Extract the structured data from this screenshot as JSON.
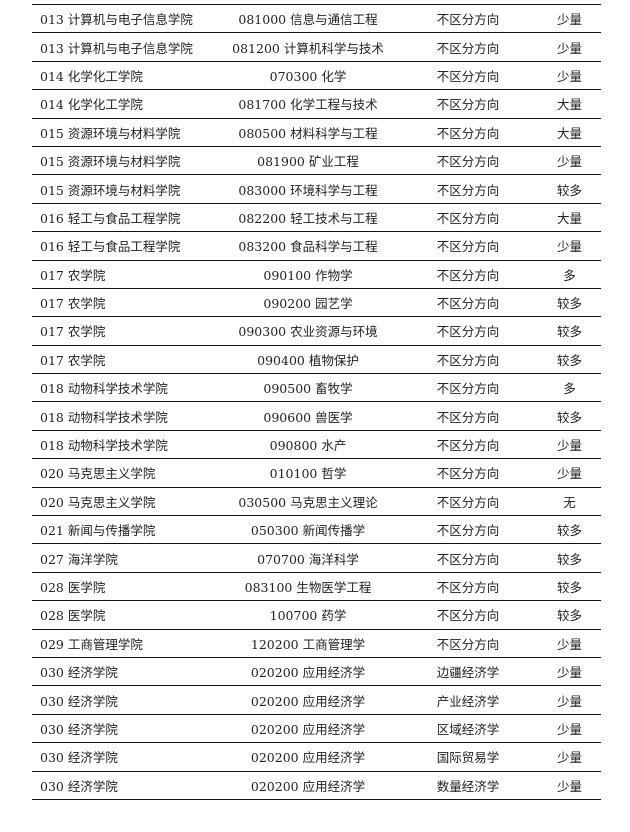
{
  "rows": [
    [
      "013 计算机与电子信息学院",
      "081000 信息与通信工程",
      "不区分方向",
      "少量"
    ],
    [
      "013 计算机与电子信息学院",
      "081200 计算机科学与技术",
      "不区分方向",
      "少量"
    ],
    [
      "014 化学化工学院",
      "070300 化学",
      "不区分方向",
      "少量"
    ],
    [
      "014 化学化工学院",
      "081700 化学工程与技术",
      "不区分方向",
      "大量"
    ],
    [
      "015 资源环境与材料学院",
      "080500 材料科学与工程",
      "不区分方向",
      "大量"
    ],
    [
      "015 资源环境与材料学院",
      "081900 矿业工程",
      "不区分方向",
      "少量"
    ],
    [
      "015 资源环境与材料学院",
      "083000 环境科学与工程",
      "不区分方向",
      "较多"
    ],
    [
      "016 轻工与食品工程学院",
      "082200 轻工技术与工程",
      "不区分方向",
      "大量"
    ],
    [
      "016 轻工与食品工程学院",
      "083200 食品科学与工程",
      "不区分方向",
      "少量"
    ],
    [
      "017 农学院",
      "090100 作物学",
      "不区分方向",
      "多"
    ],
    [
      "017 农学院",
      "090200 园艺学",
      "不区分方向",
      "较多"
    ],
    [
      "017 农学院",
      "090300 农业资源与环境",
      "不区分方向",
      "较多"
    ],
    [
      "017 农学院",
      "090400 植物保护",
      "不区分方向",
      "较多"
    ],
    [
      "018 动物科学技术学院",
      "090500 畜牧学",
      "不区分方向",
      "多"
    ],
    [
      "018 动物科学技术学院",
      "090600 兽医学",
      "不区分方向",
      "较多"
    ],
    [
      "018 动物科学技术学院",
      "090800 水产",
      "不区分方向",
      "少量"
    ],
    [
      "020 马克思主义学院",
      "010100 哲学",
      "不区分方向",
      "少量"
    ],
    [
      "020 马克思主义学院",
      "030500 马克思主义理论",
      "不区分方向",
      "无"
    ],
    [
      "021 新闻与传播学院",
      "050300 新闻传播学",
      "不区分方向",
      "较多"
    ],
    [
      "027 海洋学院",
      "070700 海洋科学",
      "不区分方向",
      "较多"
    ],
    [
      "028 医学院",
      "083100 生物医学工程",
      "不区分方向",
      "较多"
    ],
    [
      "028 医学院",
      "100700 药学",
      "不区分方向",
      "较多"
    ],
    [
      "029 工商管理学院",
      "120200 工商管理学",
      "不区分方向",
      "少量"
    ],
    [
      "030 经济学院",
      "020200 应用经济学",
      "边疆经济学",
      "少量"
    ],
    [
      "030 经济学院",
      "020200 应用经济学",
      "产业经济学",
      "少量"
    ],
    [
      "030 经济学院",
      "020200 应用经济学",
      "区域经济学",
      "少量"
    ],
    [
      "030 经济学院",
      "020200 应用经济学",
      "国际贸易学",
      "少量"
    ],
    [
      "030 经济学院",
      "020200 应用经济学",
      "数量经济学",
      "少量"
    ]
  ]
}
